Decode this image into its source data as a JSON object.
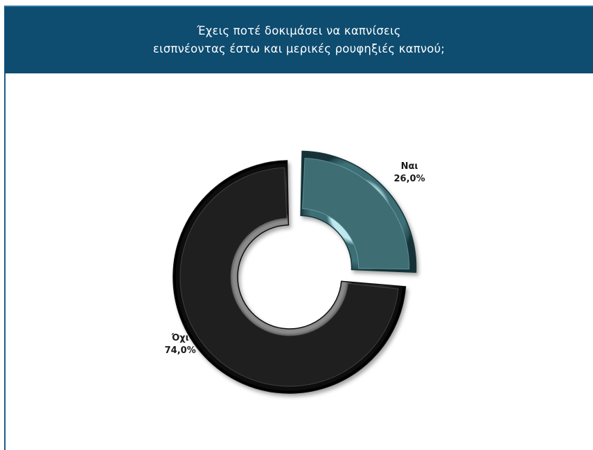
{
  "header": {
    "title_line1": "Έχεις ποτέ δοκιμάσει να καπνίσεις",
    "title_line2": "εισπνέοντας έστω και μερικές ρουφηξιές καπνού;",
    "background": "#0e4c70"
  },
  "chart_data": {
    "type": "pie",
    "title": "Έχεις ποτέ δοκιμάσει να καπνίσεις εισπνέοντας έστω και μερικές ρουφηξιές καπνού;",
    "donut": true,
    "slices": [
      {
        "label": "Ναι",
        "value": 26.0,
        "value_label": "26,0%",
        "color": "#3e6d74",
        "exploded": true
      },
      {
        "label": "Όχι",
        "value": 74.0,
        "value_label": "74,0%",
        "color": "#1f1f1f",
        "exploded": false
      }
    ]
  }
}
